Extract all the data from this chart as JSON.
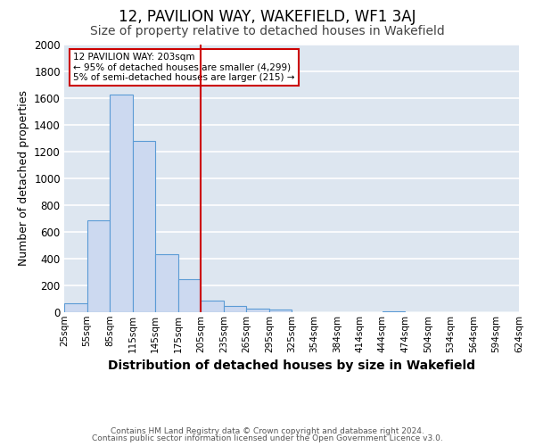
{
  "title": "12, PAVILION WAY, WAKEFIELD, WF1 3AJ",
  "subtitle": "Size of property relative to detached houses in Wakefield",
  "xlabel": "Distribution of detached houses by size in Wakefield",
  "ylabel": "Number of detached properties",
  "bar_heights": [
    70,
    690,
    1630,
    1280,
    435,
    250,
    85,
    50,
    30,
    20,
    0,
    0,
    0,
    0,
    10,
    0,
    0,
    0,
    0,
    0
  ],
  "bin_edges": [
    25,
    55,
    85,
    115,
    145,
    175,
    205,
    235,
    265,
    295,
    325,
    354,
    384,
    414,
    444,
    474,
    504,
    534,
    564,
    594,
    624
  ],
  "bar_color": "#ccd9f0",
  "bar_edge_color": "#5b9bd5",
  "bg_color": "#dde6f0",
  "grid_color": "#ffffff",
  "vline_x": 205,
  "vline_color": "#cc0000",
  "ylim": [
    0,
    2000
  ],
  "yticks": [
    0,
    200,
    400,
    600,
    800,
    1000,
    1200,
    1400,
    1600,
    1800,
    2000
  ],
  "annotation_title": "12 PAVILION WAY: 203sqm",
  "annotation_line1": "← 95% of detached houses are smaller (4,299)",
  "annotation_line2": "5% of semi-detached houses are larger (215) →",
  "annotation_box_color": "#ffffff",
  "annotation_border_color": "#cc0000",
  "footer1": "Contains HM Land Registry data © Crown copyright and database right 2024.",
  "footer2": "Contains public sector information licensed under the Open Government Licence v3.0.",
  "title_fontsize": 12,
  "subtitle_fontsize": 10,
  "xlabel_fontsize": 10,
  "ylabel_fontsize": 9
}
